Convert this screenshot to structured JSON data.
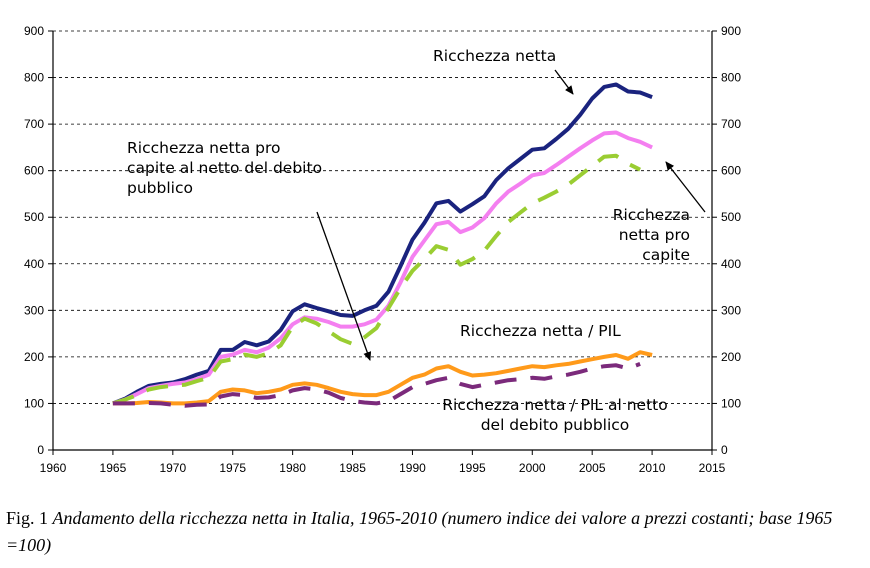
{
  "chart_data": {
    "type": "line",
    "xlim": [
      1960,
      2015
    ],
    "ylim": [
      0,
      900
    ],
    "x_ticks": [
      "1960",
      "1965",
      "1970",
      "1975",
      "1980",
      "1985",
      "1990",
      "1995",
      "2000",
      "2005",
      "2010",
      "2015"
    ],
    "y_ticks": [
      "0",
      "100",
      "200",
      "300",
      "400",
      "500",
      "600",
      "700",
      "800",
      "900"
    ],
    "y_ticks_right": [
      "0",
      "100",
      "200",
      "300",
      "400",
      "500",
      "600",
      "700",
      "800",
      "900"
    ],
    "grid": "horizontal dashed",
    "series": [
      {
        "name": "Ricchezza netta",
        "color": "#1a237e",
        "style": "solid",
        "x": [
          1965,
          1966,
          1967,
          1968,
          1969,
          1970,
          1971,
          1972,
          1973,
          1974,
          1975,
          1976,
          1977,
          1978,
          1979,
          1980,
          1981,
          1982,
          1983,
          1984,
          1985,
          1986,
          1987,
          1988,
          1989,
          1990,
          1991,
          1992,
          1993,
          1994,
          1995,
          1996,
          1997,
          1998,
          1999,
          2000,
          2001,
          2002,
          2003,
          2004,
          2005,
          2006,
          2007,
          2008,
          2009,
          2010
        ],
        "y": [
          100,
          110,
          125,
          138,
          142,
          145,
          152,
          162,
          170,
          215,
          215,
          232,
          225,
          233,
          258,
          298,
          313,
          305,
          298,
          290,
          288,
          300,
          310,
          340,
          395,
          452,
          488,
          530,
          535,
          512,
          528,
          545,
          580,
          605,
          625,
          645,
          648,
          668,
          690,
          720,
          755,
          780,
          785,
          770,
          768,
          758
        ]
      },
      {
        "name": "Ricchezza netta pro capite",
        "color": "#f47ff0",
        "style": "solid",
        "x": [
          1965,
          1966,
          1967,
          1968,
          1969,
          1970,
          1971,
          1972,
          1973,
          1974,
          1975,
          1976,
          1977,
          1978,
          1979,
          1980,
          1981,
          1982,
          1983,
          1984,
          1985,
          1986,
          1987,
          1988,
          1989,
          1990,
          1991,
          1992,
          1993,
          1994,
          1995,
          1996,
          1997,
          1998,
          1999,
          2000,
          2001,
          2002,
          2003,
          2004,
          2005,
          2006,
          2007,
          2008,
          2009,
          2010
        ],
        "y": [
          100,
          108,
          120,
          133,
          138,
          142,
          145,
          152,
          162,
          200,
          205,
          215,
          210,
          220,
          240,
          270,
          285,
          282,
          275,
          265,
          265,
          270,
          280,
          310,
          360,
          415,
          450,
          485,
          490,
          468,
          478,
          498,
          530,
          555,
          572,
          590,
          595,
          612,
          630,
          648,
          665,
          680,
          682,
          670,
          662,
          650
        ]
      },
      {
        "name": "Ricchezza netta pro capite al netto del debito pubblico",
        "color": "#9acd32",
        "style": "dashed",
        "x": [
          1965,
          1966,
          1967,
          1968,
          1969,
          1970,
          1971,
          1972,
          1973,
          1974,
          1975,
          1976,
          1977,
          1978,
          1979,
          1980,
          1981,
          1982,
          1983,
          1984,
          1985,
          1986,
          1987,
          1988,
          1989,
          1990,
          1991,
          1992,
          1993,
          1994,
          1995,
          1996,
          1997,
          1998,
          1999,
          2000,
          2001,
          2002,
          2003,
          2004,
          2005,
          2006,
          2007,
          2008,
          2009
        ],
        "y": [
          100,
          108,
          118,
          130,
          135,
          138,
          140,
          148,
          155,
          190,
          195,
          205,
          200,
          208,
          225,
          265,
          282,
          272,
          255,
          238,
          228,
          242,
          262,
          305,
          348,
          385,
          410,
          438,
          430,
          398,
          410,
          428,
          460,
          490,
          510,
          530,
          542,
          555,
          570,
          590,
          610,
          630,
          632,
          615,
          602
        ]
      },
      {
        "name": "Ricchezza netta / PIL",
        "color": "#ff9a1a",
        "style": "solid",
        "x": [
          1965,
          1966,
          1967,
          1968,
          1969,
          1970,
          1971,
          1972,
          1973,
          1974,
          1975,
          1976,
          1977,
          1978,
          1979,
          1980,
          1981,
          1982,
          1983,
          1984,
          1985,
          1986,
          1987,
          1988,
          1989,
          1990,
          1991,
          1992,
          1993,
          1994,
          1995,
          1996,
          1997,
          1998,
          1999,
          2000,
          2001,
          2002,
          2003,
          2004,
          2005,
          2006,
          2007,
          2008,
          2009,
          2010
        ],
        "y": [
          100,
          100,
          101,
          103,
          102,
          100,
          100,
          102,
          105,
          125,
          130,
          128,
          122,
          125,
          130,
          140,
          143,
          140,
          133,
          125,
          120,
          118,
          118,
          125,
          140,
          155,
          162,
          175,
          180,
          168,
          160,
          162,
          165,
          170,
          175,
          180,
          178,
          182,
          185,
          190,
          195,
          200,
          204,
          196,
          210,
          204
        ]
      },
      {
        "name": "Ricchezza netta / PIL al netto del debito pubblico",
        "color": "#7b2a7b",
        "style": "dashed",
        "x": [
          1965,
          1966,
          1967,
          1968,
          1969,
          1970,
          1971,
          1972,
          1973,
          1974,
          1975,
          1976,
          1977,
          1978,
          1979,
          1980,
          1981,
          1982,
          1983,
          1984,
          1985,
          1986,
          1987,
          1988,
          1989,
          1990,
          1991,
          1992,
          1993,
          1994,
          1995,
          1996,
          1997,
          1998,
          1999,
          2000,
          2001,
          2002,
          2003,
          2004,
          2005,
          2006,
          2007,
          2008,
          2009
        ],
        "y": [
          100,
          100,
          100,
          101,
          100,
          97,
          95,
          97,
          98,
          115,
          120,
          118,
          112,
          113,
          118,
          128,
          133,
          130,
          123,
          112,
          105,
          102,
          100,
          105,
          120,
          135,
          142,
          150,
          155,
          142,
          135,
          140,
          145,
          150,
          152,
          155,
          153,
          158,
          162,
          168,
          175,
          180,
          182,
          175,
          185
        ]
      }
    ],
    "annotations": [
      {
        "lines": [
          "Ricchezza netta"
        ],
        "series": 0
      },
      {
        "lines": [
          "Ricchezza netta pro",
          "capite al netto del debito",
          "pubblico"
        ],
        "series": 2
      },
      {
        "lines": [
          "Ricchezza",
          "netta pro",
          "capite"
        ],
        "series": 1
      },
      {
        "lines": [
          "Ricchezza netta / PIL"
        ],
        "series": 3
      },
      {
        "lines": [
          "Ricchezza netta / PIL al netto",
          "del debito pubblico"
        ],
        "series": 4
      }
    ]
  },
  "caption": {
    "prefix": "Fig. 1 ",
    "text": "Andamento della ricchezza netta in Italia, 1965-2010 (numero indice dei valore a prezzi costanti; base 1965 =100)"
  }
}
